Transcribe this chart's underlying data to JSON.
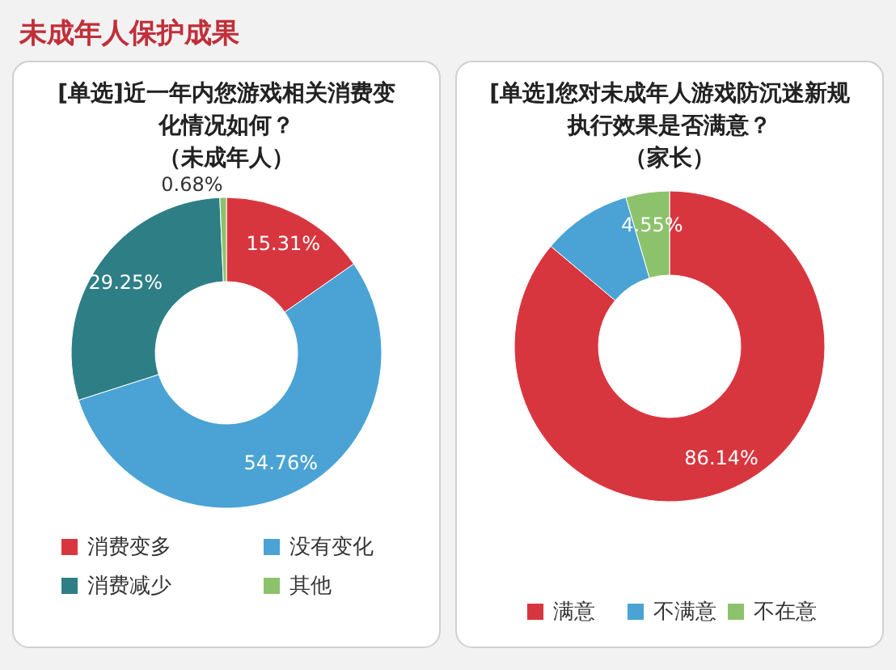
{
  "chart_data": [
    {
      "type": "other",
      "title": "未成年人保护成果"
    },
    {
      "type": "donut",
      "title": "[单选]近一年内您游戏相关消费变化情况如何？",
      "subtitle": "（未成年人）",
      "categories": [
        "消费变多",
        "没有变化",
        "消费减少",
        "其他"
      ],
      "values": [
        15.31,
        54.76,
        29.25,
        0.68
      ],
      "value_labels": [
        "15.31%",
        "54.76%",
        "29.25%",
        "0.68%"
      ],
      "colors": [
        "#d8363f",
        "#4aa3d4",
        "#2e7e86",
        "#8cc26c"
      ],
      "legend": "bottom"
    },
    {
      "type": "donut",
      "title": "[单选]您对未成年人游戏防沉迷新规执行效果是否满意？",
      "subtitle": "（家长）",
      "categories": [
        "满意",
        "不满意",
        "不在意"
      ],
      "values": [
        86.14,
        9.31,
        4.55
      ],
      "value_labels": [
        "86.14%",
        null,
        "4.55%"
      ],
      "colors": [
        "#d8363f",
        "#4aa3d4",
        "#8cc26c"
      ],
      "legend": "bottom"
    }
  ]
}
